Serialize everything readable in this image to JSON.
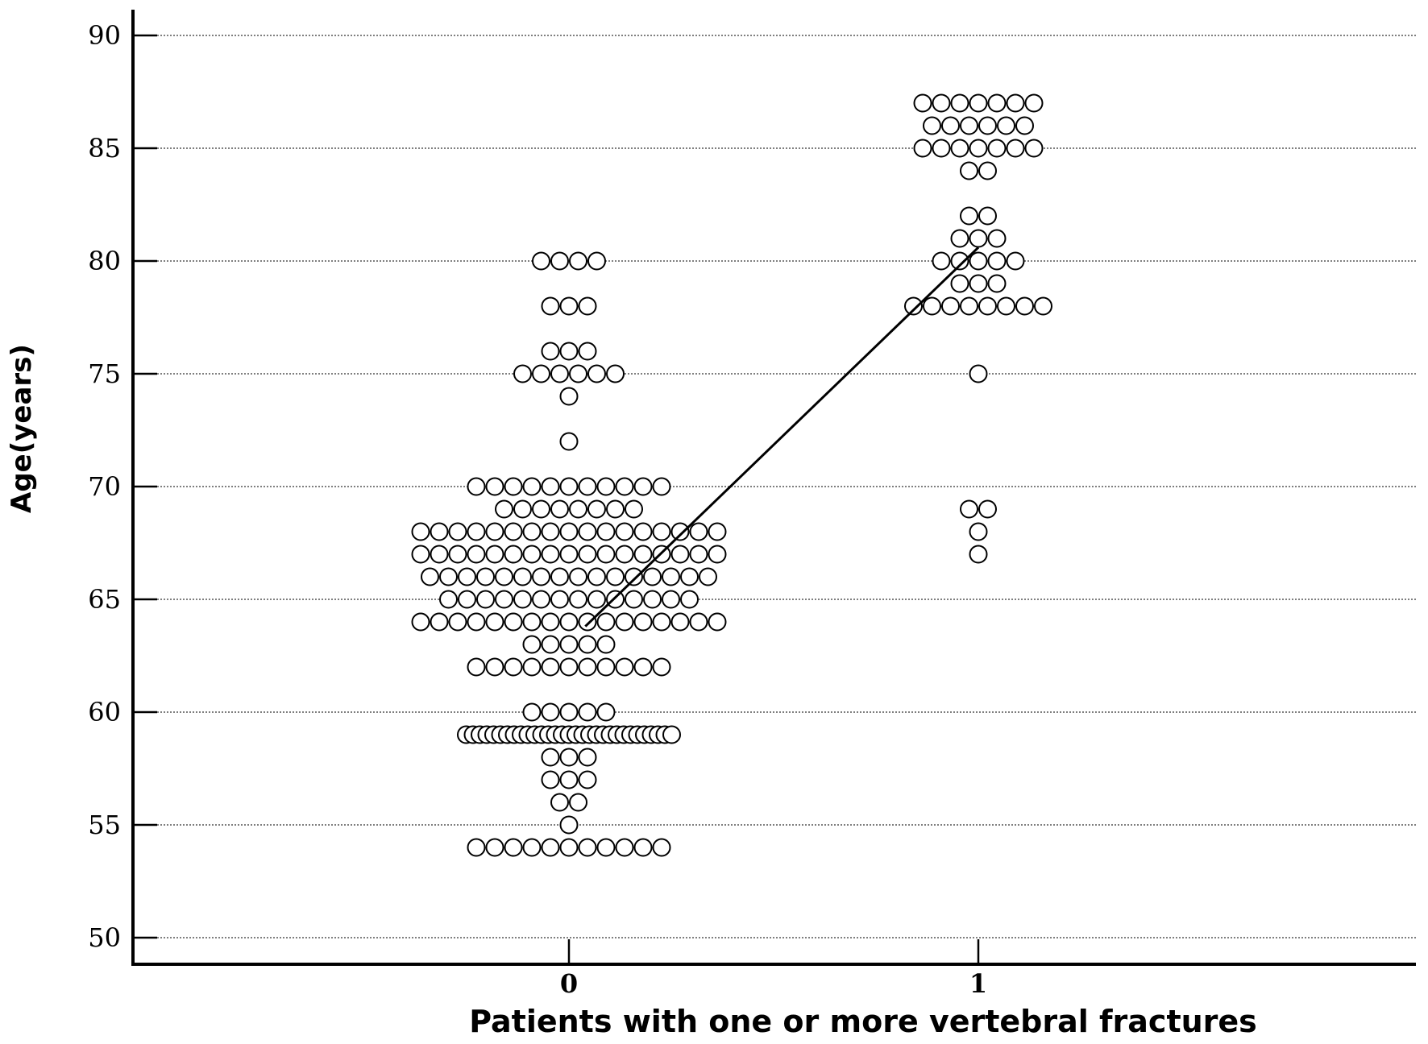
{
  "chart_data": {
    "type": "scatter",
    "title": "",
    "xlabel": "Patients with one or more vertebral fractures",
    "ylabel": "Age(years)",
    "ylim": [
      50,
      90
    ],
    "yticks": [
      50,
      55,
      60,
      65,
      70,
      75,
      80,
      85,
      90
    ],
    "xticks": [
      0,
      1
    ],
    "xtick_labels": [
      "0",
      "1"
    ],
    "grid": "horizontal dotted",
    "legend": "none",
    "point_style": "hollow circle",
    "groups": [
      {
        "x": 0,
        "rows": [
          {
            "age": 80,
            "count": 4
          },
          {
            "age": 78,
            "count": 3
          },
          {
            "age": 76,
            "count": 3
          },
          {
            "age": 75,
            "count": 6
          },
          {
            "age": 74,
            "count": 1
          },
          {
            "age": 72,
            "count": 1
          },
          {
            "age": 70,
            "count": 11
          },
          {
            "age": 69,
            "count": 8
          },
          {
            "age": 68,
            "count": 17
          },
          {
            "age": 67,
            "count": 17
          },
          {
            "age": 66,
            "count": 16
          },
          {
            "age": 65,
            "count": 14
          },
          {
            "age": 64,
            "count": 17
          },
          {
            "age": 63,
            "count": 5
          },
          {
            "age": 62,
            "count": 11
          },
          {
            "age": 60,
            "count": 5
          },
          {
            "age": 59,
            "count": 31
          },
          {
            "age": 58,
            "count": 3
          },
          {
            "age": 57,
            "count": 3
          },
          {
            "age": 56,
            "count": 2
          },
          {
            "age": 55,
            "count": 1
          },
          {
            "age": 54,
            "count": 11
          }
        ]
      },
      {
        "x": 1,
        "rows": [
          {
            "age": 87,
            "count": 7
          },
          {
            "age": 86,
            "count": 6
          },
          {
            "age": 85,
            "count": 7
          },
          {
            "age": 84,
            "count": 2
          },
          {
            "age": 82,
            "count": 2
          },
          {
            "age": 81,
            "count": 3
          },
          {
            "age": 80,
            "count": 5
          },
          {
            "age": 79,
            "count": 3
          },
          {
            "age": 78,
            "count": 8
          },
          {
            "age": 75,
            "count": 1
          },
          {
            "age": 69,
            "count": 2
          },
          {
            "age": 68,
            "count": 1
          },
          {
            "age": 67,
            "count": 1
          }
        ]
      }
    ],
    "trend_line": {
      "x": [
        0.04,
        1.0
      ],
      "y": [
        63.8,
        80.6
      ]
    },
    "colors": {
      "point_stroke": "#000000",
      "point_fill": "#ffffff",
      "grid": "#555555",
      "line": "#000000"
    }
  }
}
